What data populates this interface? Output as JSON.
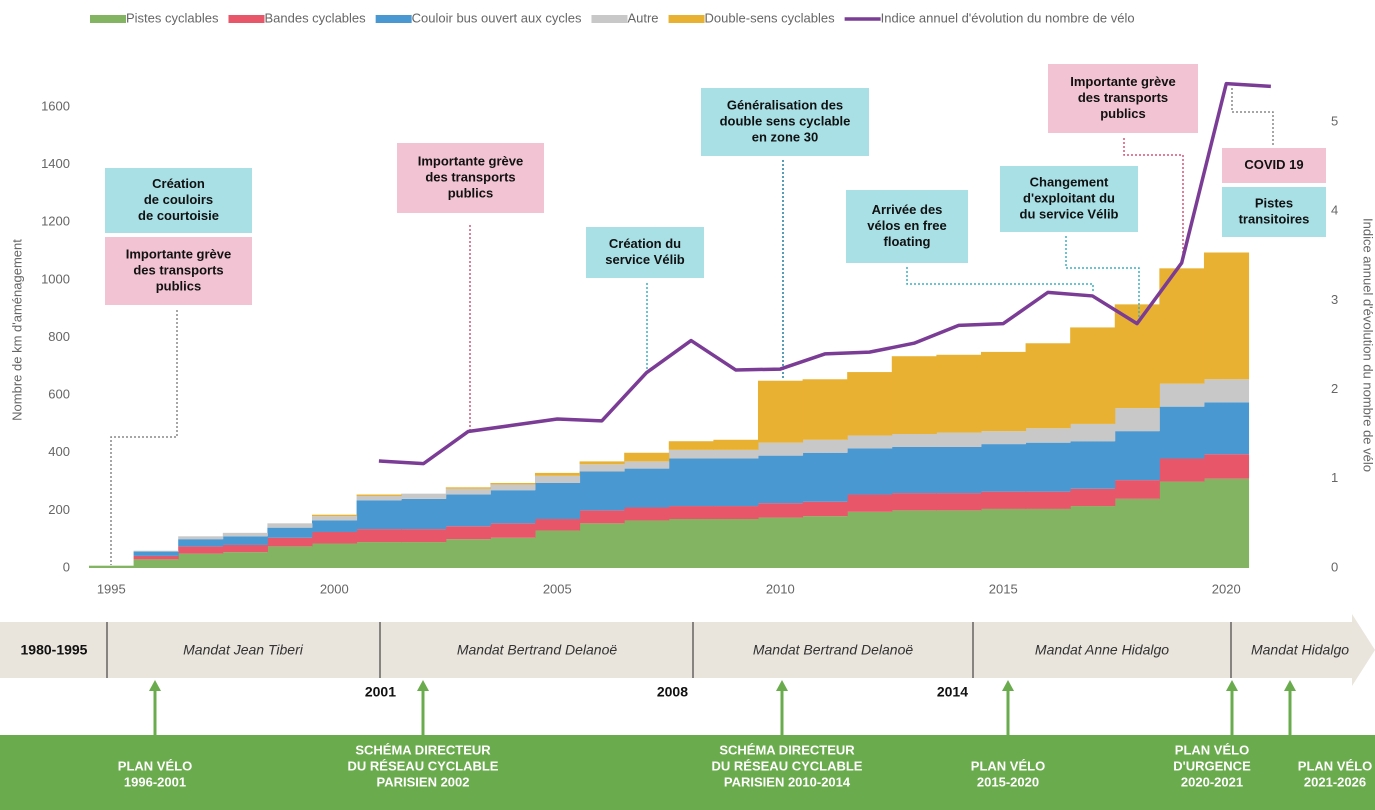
{
  "chart_data": {
    "type": "stacked-step-area",
    "ylabel": "Nombre de km d'aménagement",
    "y2label": "Indice annuel d'évolution du nombre de vélo",
    "x": [
      1995,
      1996,
      1997,
      1998,
      1999,
      2000,
      2001,
      2002,
      2003,
      2004,
      2005,
      2006,
      2007,
      2008,
      2009,
      2010,
      2011,
      2012,
      2013,
      2014,
      2015,
      2016,
      2017,
      2018,
      2019,
      2020
    ],
    "xlim": [
      1994.5,
      2021.9
    ],
    "xticks": [
      1995,
      2000,
      2005,
      2010,
      2015,
      2020
    ],
    "ylim": [
      0,
      1600
    ],
    "yticks": [
      0,
      200,
      400,
      600,
      800,
      1000,
      1200,
      1400,
      1600
    ],
    "y2lim": [
      0,
      5
    ],
    "y2ticks": [
      0,
      1,
      2,
      3,
      4,
      5
    ],
    "legend": "top",
    "series": [
      {
        "name": "Pistes cyclables",
        "color": "#82b462",
        "values": [
          8,
          30,
          50,
          55,
          75,
          85,
          90,
          90,
          100,
          105,
          130,
          155,
          165,
          170,
          170,
          175,
          180,
          195,
          200,
          200,
          205,
          205,
          215,
          240,
          300,
          310
        ]
      },
      {
        "name": "Bandes cyclables",
        "color": "#e8566a",
        "values": [
          0,
          12,
          25,
          25,
          30,
          40,
          45,
          45,
          45,
          50,
          40,
          45,
          45,
          45,
          45,
          50,
          50,
          60,
          60,
          60,
          60,
          60,
          60,
          65,
          80,
          85
        ]
      },
      {
        "name": "Couloir bus ouvert aux cycles",
        "color": "#4a98d2",
        "values": [
          0,
          15,
          25,
          30,
          35,
          40,
          100,
          105,
          110,
          115,
          125,
          135,
          135,
          165,
          165,
          165,
          170,
          160,
          160,
          160,
          165,
          170,
          165,
          170,
          180,
          180
        ]
      },
      {
        "name": "Autre",
        "color": "#c8c8c8",
        "values": [
          0,
          3,
          10,
          12,
          15,
          15,
          15,
          18,
          20,
          20,
          25,
          25,
          25,
          30,
          30,
          45,
          45,
          45,
          45,
          50,
          45,
          50,
          60,
          80,
          80,
          80
        ]
      },
      {
        "name": "Double-sens cyclables",
        "color": "#e9b132",
        "values": [
          0,
          0,
          0,
          0,
          0,
          5,
          5,
          0,
          5,
          5,
          10,
          10,
          30,
          30,
          35,
          215,
          210,
          220,
          270,
          270,
          275,
          295,
          335,
          360,
          400,
          440
        ]
      },
      {
        "name": "Indice annuel d'évolution du nombre de vélo",
        "color": "#7b3c96",
        "type": "line",
        "axis": "y2",
        "x": [
          2001,
          2002,
          2003,
          2004,
          2005,
          2006,
          2007,
          2008,
          2009,
          2010,
          2011,
          2012,
          2013,
          2014,
          2015,
          2016,
          2017,
          2018,
          2019,
          2020,
          2021
        ],
        "values": [
          1.2,
          1.17,
          1.53,
          1.6,
          1.67,
          1.65,
          2.19,
          2.55,
          2.22,
          2.23,
          2.4,
          2.42,
          2.52,
          2.72,
          2.74,
          3.09,
          3.05,
          2.74,
          3.42,
          5.43,
          5.4
        ]
      }
    ],
    "annotations": [
      {
        "color": "#a8e0e6",
        "lines": [
          "Création",
          "de couloirs",
          "de courtoisie"
        ]
      },
      {
        "color": "#f2c4d3",
        "lines": [
          "Importante grève",
          "des transports",
          "publics"
        ]
      },
      {
        "color": "#f2c4d3",
        "lines": [
          "Importante grève",
          "des transports",
          "publics"
        ]
      },
      {
        "color": "#a8e0e6",
        "lines": [
          "Création du",
          "service Vélib"
        ]
      },
      {
        "color": "#a8e0e6",
        "lines": [
          "Généralisation des",
          "double sens cyclable",
          "en zone 30"
        ]
      },
      {
        "color": "#a8e0e6",
        "lines": [
          "Arrivée des",
          "vélos en free",
          "floating"
        ]
      },
      {
        "color": "#a8e0e6",
        "lines": [
          "Changement",
          "d'exploitant du",
          "du service Vélib"
        ]
      },
      {
        "color": "#f2c4d3",
        "lines": [
          "Importante grève",
          "des transports",
          "publics"
        ]
      },
      {
        "color": "#f2c4d3",
        "lines": [
          "COVID 19"
        ]
      },
      {
        "color": "#a8e0e6",
        "lines": [
          "Pistes",
          "transitoires"
        ]
      }
    ]
  },
  "timeline": {
    "periods": [
      "1980-1995",
      "Mandat Jean Tiberi",
      "Mandat Bertrand Delanoë",
      "Mandat Bertrand Delanoë",
      "Mandat Anne Hidalgo",
      "Mandat Hidalgo"
    ],
    "years": [
      "2001",
      "2008",
      "2014"
    ],
    "plans": [
      {
        "lines": [
          "PLAN VÉLO",
          "1996-2001"
        ]
      },
      {
        "lines": [
          "SCHÉMA DIRECTEUR",
          "DU RÉSEAU CYCLABLE",
          "PARISIEN 2002"
        ]
      },
      {
        "lines": [
          "SCHÉMA DIRECTEUR",
          "DU RÉSEAU CYCLABLE",
          "PARISIEN 2010-2014"
        ]
      },
      {
        "lines": [
          "PLAN VÉLO",
          "2015-2020"
        ]
      },
      {
        "lines": [
          "PLAN VÉLO",
          "D'URGENCE",
          "2020-2021"
        ]
      },
      {
        "lines": [
          "PLAN VÉLO",
          "2021-2026"
        ]
      }
    ]
  }
}
